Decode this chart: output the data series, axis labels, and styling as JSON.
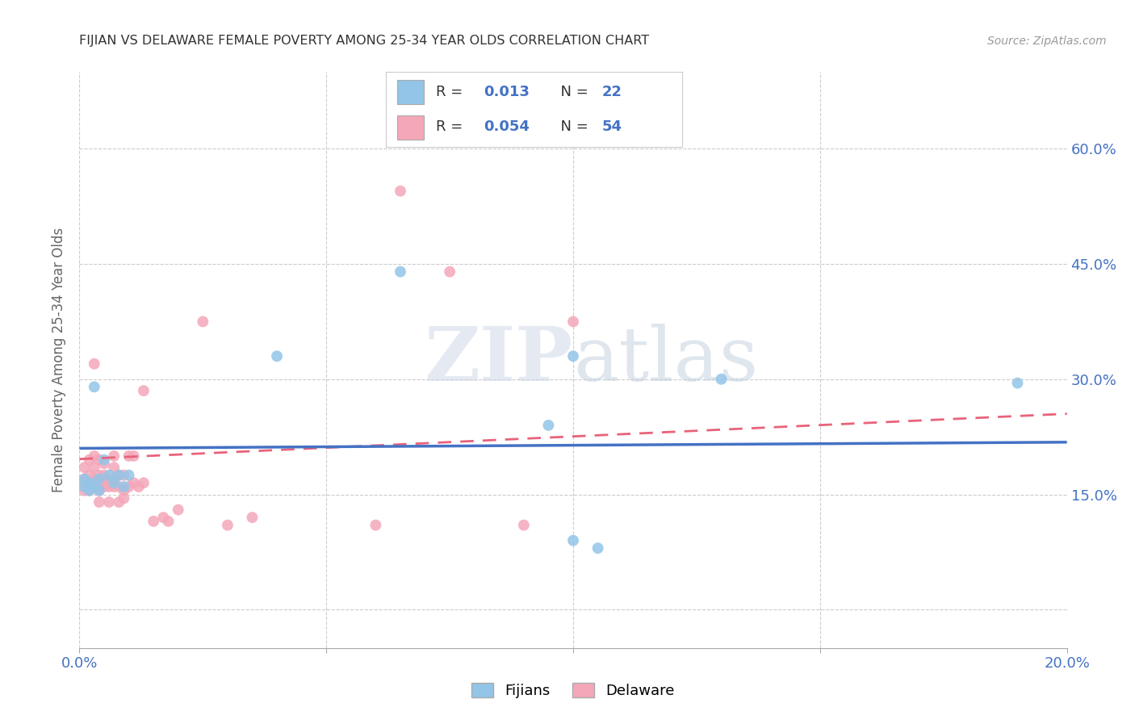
{
  "title": "FIJIAN VS DELAWARE FEMALE POVERTY AMONG 25-34 YEAR OLDS CORRELATION CHART",
  "source": "Source: ZipAtlas.com",
  "ylabel": "Female Poverty Among 25-34 Year Olds",
  "yticks": [
    0.0,
    0.15,
    0.3,
    0.45,
    0.6
  ],
  "ytick_labels": [
    "",
    "15.0%",
    "30.0%",
    "45.0%",
    "60.0%"
  ],
  "xlim": [
    0.0,
    0.2
  ],
  "ylim": [
    -0.05,
    0.7
  ],
  "fijian_color": "#92C5E8",
  "delaware_color": "#F4A7B9",
  "fijian_line_color": "#4472C4",
  "delaware_line_color": "#E8637A",
  "watermark_zip": "ZIP",
  "watermark_atlas": "atlas",
  "legend_fijian_R": "0.013",
  "legend_fijian_N": "22",
  "legend_delaware_R": "0.054",
  "legend_delaware_N": "54",
  "fijian_x": [
    0.001,
    0.001,
    0.002,
    0.002,
    0.003,
    0.003,
    0.004,
    0.004,
    0.005,
    0.006,
    0.007,
    0.008,
    0.009,
    0.01,
    0.04,
    0.065,
    0.095,
    0.1,
    0.1,
    0.105,
    0.13,
    0.19
  ],
  "fijian_y": [
    0.17,
    0.16,
    0.165,
    0.155,
    0.29,
    0.16,
    0.17,
    0.155,
    0.195,
    0.175,
    0.165,
    0.175,
    0.16,
    0.175,
    0.33,
    0.44,
    0.24,
    0.33,
    0.09,
    0.08,
    0.3,
    0.295
  ],
  "delaware_x": [
    0.001,
    0.001,
    0.001,
    0.001,
    0.002,
    0.002,
    0.002,
    0.002,
    0.003,
    0.003,
    0.003,
    0.003,
    0.003,
    0.004,
    0.004,
    0.004,
    0.004,
    0.004,
    0.005,
    0.005,
    0.005,
    0.005,
    0.006,
    0.006,
    0.006,
    0.007,
    0.007,
    0.007,
    0.007,
    0.008,
    0.008,
    0.008,
    0.009,
    0.009,
    0.009,
    0.01,
    0.01,
    0.011,
    0.011,
    0.012,
    0.013,
    0.013,
    0.015,
    0.017,
    0.018,
    0.02,
    0.025,
    0.03,
    0.035,
    0.06,
    0.065,
    0.075,
    0.09,
    0.1
  ],
  "delaware_y": [
    0.165,
    0.155,
    0.17,
    0.185,
    0.155,
    0.165,
    0.175,
    0.195,
    0.16,
    0.17,
    0.185,
    0.2,
    0.32,
    0.14,
    0.155,
    0.165,
    0.175,
    0.195,
    0.16,
    0.175,
    0.19,
    0.165,
    0.14,
    0.16,
    0.17,
    0.16,
    0.17,
    0.185,
    0.2,
    0.14,
    0.16,
    0.175,
    0.145,
    0.155,
    0.175,
    0.16,
    0.2,
    0.165,
    0.2,
    0.16,
    0.165,
    0.285,
    0.115,
    0.12,
    0.115,
    0.13,
    0.375,
    0.11,
    0.12,
    0.11,
    0.545,
    0.44,
    0.11,
    0.375
  ],
  "fijian_trend_x": [
    0.0,
    0.2
  ],
  "fijian_trend_y": [
    0.21,
    0.218
  ],
  "delaware_trend_x": [
    0.0,
    0.2
  ],
  "delaware_trend_y": [
    0.196,
    0.255
  ],
  "background_color": "#FFFFFF",
  "grid_color": "#CCCCCC",
  "title_color": "#333333",
  "axis_label_color": "#4472C4",
  "marker_size": 100
}
